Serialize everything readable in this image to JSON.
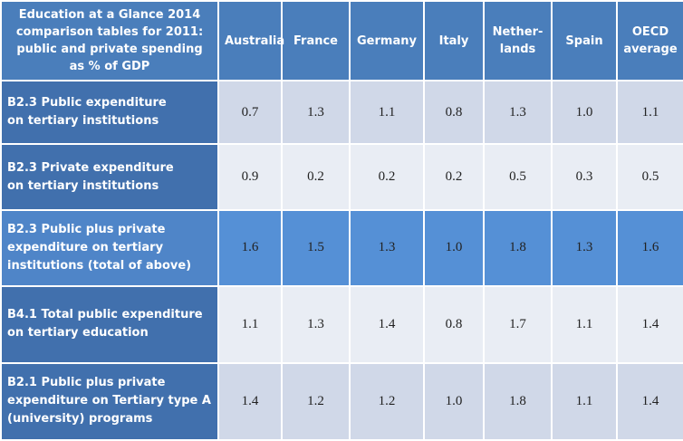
{
  "table": {
    "title": "Education at a Glance 2014 comparison tables for 2011: public and private spending as % of GDP",
    "columns": [
      "Australia",
      "France",
      "Germany",
      "Italy",
      "Nether-\nlands",
      "Spain",
      "OECD\naverage"
    ],
    "rows": [
      {
        "label": "B2.3 Public expenditure\non tertiary institutions",
        "values": [
          "0.7",
          "1.3",
          "1.1",
          "0.8",
          "1.3",
          "1.0",
          "1.1"
        ]
      },
      {
        "label": "B2.3 Private expenditure\non tertiary institutions",
        "values": [
          "0.9",
          "0.2",
          "0.2",
          "0.2",
          "0.5",
          "0.3",
          "0.5"
        ]
      },
      {
        "label": "B2.3 Public plus private\nexpenditure on tertiary\ninstitutions  (total of  above)",
        "values": [
          "1.6",
          "1.5",
          "1.3",
          "1.0",
          "1.8",
          "1.3",
          "1.6"
        ]
      },
      {
        "label": "B4.1 Total public expenditure\non tertiary education",
        "values": [
          "1.1",
          "1.3",
          "1.4",
          "0.8",
          "1.7",
          "1.1",
          "1.4"
        ]
      },
      {
        "label": "B2.1 Public plus private\nexpenditure on Tertiary type A\n(university) programs",
        "values": [
          "1.4",
          "1.2",
          "1.2",
          "1.0",
          "1.8",
          "1.1",
          "1.4"
        ]
      }
    ]
  }
}
